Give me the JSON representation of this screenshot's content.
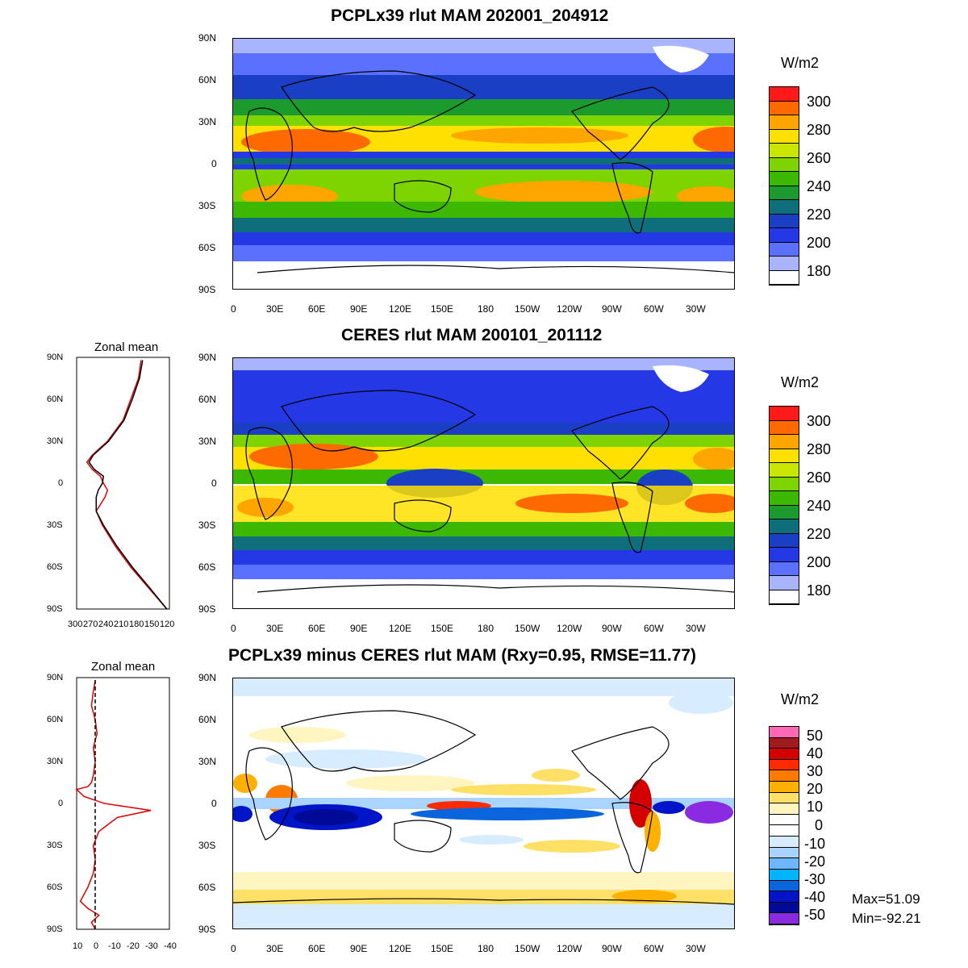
{
  "panels": [
    {
      "id": "model",
      "title": "PCPLx39 rlut MAM 202001_204912",
      "colorbar": {
        "unit": "W/m2",
        "labels": [
          "300",
          "280",
          "260",
          "240",
          "220",
          "200",
          "180"
        ],
        "colors": [
          "#ff1a1a",
          "#ff6a00",
          "#ffa500",
          "#ffe000",
          "#c8e600",
          "#7dd400",
          "#3cb800",
          "#1d9a2e",
          "#0e6e7a",
          "#1a3fc4",
          "#2438e6",
          "#5a70ff",
          "#a9b4ff",
          "#ffffff"
        ]
      }
    },
    {
      "id": "obs",
      "title": "CERES rlut MAM 200101_201112",
      "colorbar": {
        "unit": "W/m2",
        "labels": [
          "300",
          "280",
          "260",
          "240",
          "220",
          "200",
          "180"
        ],
        "colors": [
          "#ff1a1a",
          "#ff6a00",
          "#ffa500",
          "#ffe000",
          "#c8e600",
          "#7dd400",
          "#3cb800",
          "#1d9a2e",
          "#0e6e7a",
          "#1a3fc4",
          "#2438e6",
          "#5a70ff",
          "#a9b4ff",
          "#ffffff"
        ]
      },
      "zonal_mean": {
        "title": "Zonal mean",
        "x_ticks": [
          "300",
          "270",
          "240",
          "210",
          "180",
          "150",
          "120"
        ]
      }
    },
    {
      "id": "diff",
      "title": "PCPLx39 minus CERES rlut MAM (Rxy=0.95, RMSE=11.77)",
      "colorbar": {
        "unit": "W/m2",
        "labels": [
          "50",
          "40",
          "30",
          "20",
          "10",
          "0",
          "-10",
          "-20",
          "-30",
          "-40",
          "-50"
        ],
        "colors": [
          "#ff69b4",
          "#a01c1c",
          "#d40000",
          "#ff2a00",
          "#ff7a00",
          "#ffb000",
          "#ffe066",
          "#fff5c0",
          "#ffffff",
          "#ffffff",
          "#d8ecff",
          "#a8d4ff",
          "#6cb6ff",
          "#00b4ff",
          "#0a64dc",
          "#0014c8",
          "#000a96",
          "#8a2be2"
        ]
      },
      "stats": {
        "max": "Max=51.09",
        "min": "Min=-92.21"
      },
      "zonal_mean": {
        "title": "Zonal mean",
        "x_ticks": [
          "10",
          "0",
          "-10",
          "-20",
          "-30",
          "-40"
        ]
      }
    }
  ],
  "lat_ticks": [
    "90N",
    "60N",
    "30N",
    "0",
    "30S",
    "60S",
    "90S"
  ],
  "lon_ticks": [
    "0",
    "30E",
    "60E",
    "90E",
    "120E",
    "150E",
    "180",
    "150W",
    "120W",
    "90W",
    "60W",
    "30W"
  ],
  "chart_data": [
    {
      "type": "line",
      "title": "Zonal mean",
      "xlim": [
        300,
        120
      ],
      "ylim": [
        -90,
        90
      ],
      "series": [
        {
          "color": "#e00000",
          "y": [
            -90,
            -75,
            -60,
            -45,
            -30,
            -20,
            -10,
            -5,
            0,
            5,
            10,
            15,
            20,
            30,
            45,
            60,
            75,
            88
          ],
          "x": [
            125,
            160,
            195,
            225,
            250,
            262,
            245,
            240,
            248,
            254,
            270,
            280,
            270,
            240,
            210,
            195,
            180,
            175
          ]
        },
        {
          "color": "#000000",
          "y": [
            -90,
            -75,
            -60,
            -45,
            -30,
            -20,
            -10,
            -5,
            0,
            5,
            10,
            15,
            20,
            30,
            45,
            60,
            75,
            88
          ],
          "x": [
            125,
            158,
            192,
            222,
            248,
            262,
            262,
            258,
            250,
            248,
            266,
            276,
            268,
            238,
            208,
            192,
            178,
            172
          ]
        }
      ]
    },
    {
      "type": "line",
      "title": "Zonal mean",
      "xlim": [
        10,
        -40
      ],
      "ylim": [
        -90,
        90
      ],
      "series": [
        {
          "color": "#e00000",
          "y": [
            -90,
            -85,
            -80,
            -75,
            -70,
            -60,
            -50,
            -40,
            -30,
            -20,
            -10,
            -5,
            0,
            5,
            10,
            12,
            15,
            20,
            30,
            40,
            50,
            60,
            70,
            80,
            88
          ],
          "x": [
            0,
            2,
            -2,
            4,
            8,
            4,
            1,
            0,
            1,
            -2,
            -12,
            -30,
            -5,
            6,
            10,
            4,
            2,
            1,
            0,
            1,
            -1,
            0,
            2,
            1,
            0
          ]
        },
        {
          "color": "#000000",
          "dashed": true,
          "y": [
            -90,
            90
          ],
          "x": [
            0,
            0
          ]
        }
      ]
    }
  ]
}
